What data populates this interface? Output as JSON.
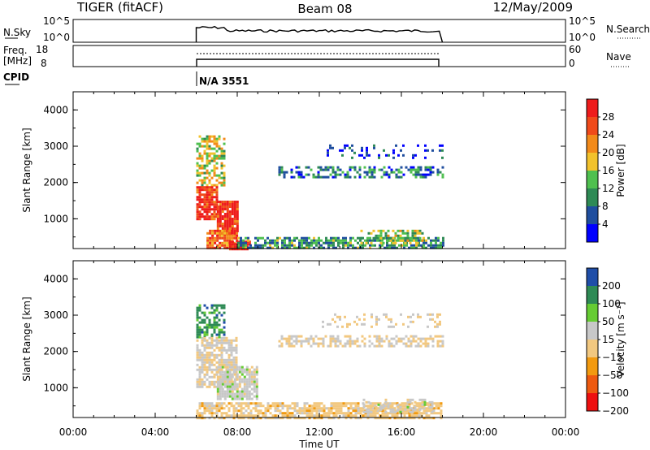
{
  "header": {
    "radar": "TIGER (fitACF)",
    "beam": "Beam 08",
    "date": "12/May/2009"
  },
  "cpid": {
    "label": "CPID",
    "value": "N/A 3551"
  },
  "strip_nsky": {
    "left_label": "N.Sky",
    "right_label": "N.Search",
    "left_ticks": [
      "10^5",
      "10^0"
    ],
    "right_ticks": [
      "10^5",
      "10^0"
    ]
  },
  "strip_freq": {
    "left_label_1": "Freq.",
    "left_label_2": "[MHz]",
    "right_label": "Nave",
    "left_ticks": [
      "18",
      "8"
    ],
    "right_ticks": [
      "60",
      "0"
    ]
  },
  "colors": {
    "power": [
      "#0000ff",
      "#1f4e9e",
      "#2e8a55",
      "#4fc04f",
      "#f2c22c",
      "#f28a1a",
      "#f04a1a",
      "#ee1c1c"
    ],
    "velocity": [
      "#ee1010",
      "#ee5a10",
      "#f29a10",
      "#f2c880",
      "#c8c8c8",
      "#66cc33",
      "#2e8a55",
      "#1f4ea8"
    ]
  },
  "chart_data": [
    {
      "type": "heatmap",
      "name": "power",
      "xlabel": "Time UT",
      "ylabel": "Slant Range [km]",
      "xlim": [
        0,
        24
      ],
      "ylim": [
        180,
        4500
      ],
      "xticks": [
        "00:00",
        "04:00",
        "08:00",
        "12:00",
        "16:00",
        "20:00",
        "00:00"
      ],
      "yticks": [
        "1000",
        "2000",
        "3000",
        "4000"
      ],
      "colorbar": {
        "label": "Power [dB]",
        "ticks": [
          "4",
          "8",
          "12",
          "16",
          "20",
          "24",
          "28"
        ],
        "range": [
          0,
          30
        ]
      },
      "regions": [
        {
          "t": [
            6.0,
            7.4
          ],
          "r": [
            1900,
            3300
          ],
          "value": 16,
          "density": 0.55
        },
        {
          "t": [
            6.0,
            7.0
          ],
          "r": [
            1000,
            1900
          ],
          "value": 26,
          "density": 0.85
        },
        {
          "t": [
            7.0,
            8.0
          ],
          "r": [
            600,
            1500
          ],
          "value": 27,
          "density": 0.9
        },
        {
          "t": [
            6.5,
            8.0
          ],
          "r": [
            180,
            700
          ],
          "value": 22,
          "density": 0.8
        },
        {
          "t": [
            7.6,
            8.6
          ],
          "r": [
            180,
            400
          ],
          "value": 29,
          "density": 0.95
        },
        {
          "t": [
            8.0,
            18.0
          ],
          "r": [
            180,
            500
          ],
          "value": 10,
          "density": 0.7
        },
        {
          "t": [
            14.0,
            17.0
          ],
          "r": [
            300,
            700
          ],
          "value": 14,
          "density": 0.45
        },
        {
          "t": [
            10.0,
            18.0
          ],
          "r": [
            2150,
            2450
          ],
          "value": 8,
          "density": 0.5
        },
        {
          "t": [
            12.0,
            18.0
          ],
          "r": [
            2700,
            3050
          ],
          "value": 4,
          "density": 0.2
        }
      ]
    },
    {
      "type": "heatmap",
      "name": "velocity",
      "xlabel": "Time UT",
      "ylabel": "Slant Range [km]",
      "xlim": [
        0,
        24
      ],
      "ylim": [
        180,
        4500
      ],
      "xticks": [
        "00:00",
        "04:00",
        "08:00",
        "12:00",
        "16:00",
        "20:00",
        "00:00"
      ],
      "yticks": [
        "1000",
        "2000",
        "3000",
        "4000"
      ],
      "colorbar": {
        "label": "Velocity [m s⁻¹]",
        "ticks": [
          "200",
          "100",
          "50",
          "15",
          "−15",
          "−50",
          "−100",
          "−200"
        ],
        "range": [
          -250,
          250
        ]
      },
      "regions": [
        {
          "t": [
            6.0,
            7.4
          ],
          "r": [
            2400,
            3300
          ],
          "value": 150,
          "density": 0.5
        },
        {
          "t": [
            6.0,
            8.0
          ],
          "r": [
            1000,
            2400
          ],
          "value": 0,
          "density": 0.7
        },
        {
          "t": [
            7.0,
            9.0
          ],
          "r": [
            700,
            1600
          ],
          "value": 30,
          "density": 0.85
        },
        {
          "t": [
            6.0,
            18.0
          ],
          "r": [
            180,
            600
          ],
          "value": -30,
          "density": 0.75
        },
        {
          "t": [
            14.0,
            17.5
          ],
          "r": [
            300,
            700
          ],
          "value": 25,
          "density": 0.45
        },
        {
          "t": [
            10.0,
            18.0
          ],
          "r": [
            2150,
            2450
          ],
          "value": 0,
          "density": 0.55
        },
        {
          "t": [
            12.0,
            18.0
          ],
          "r": [
            2700,
            3050
          ],
          "value": 0,
          "density": 0.2
        }
      ]
    }
  ]
}
